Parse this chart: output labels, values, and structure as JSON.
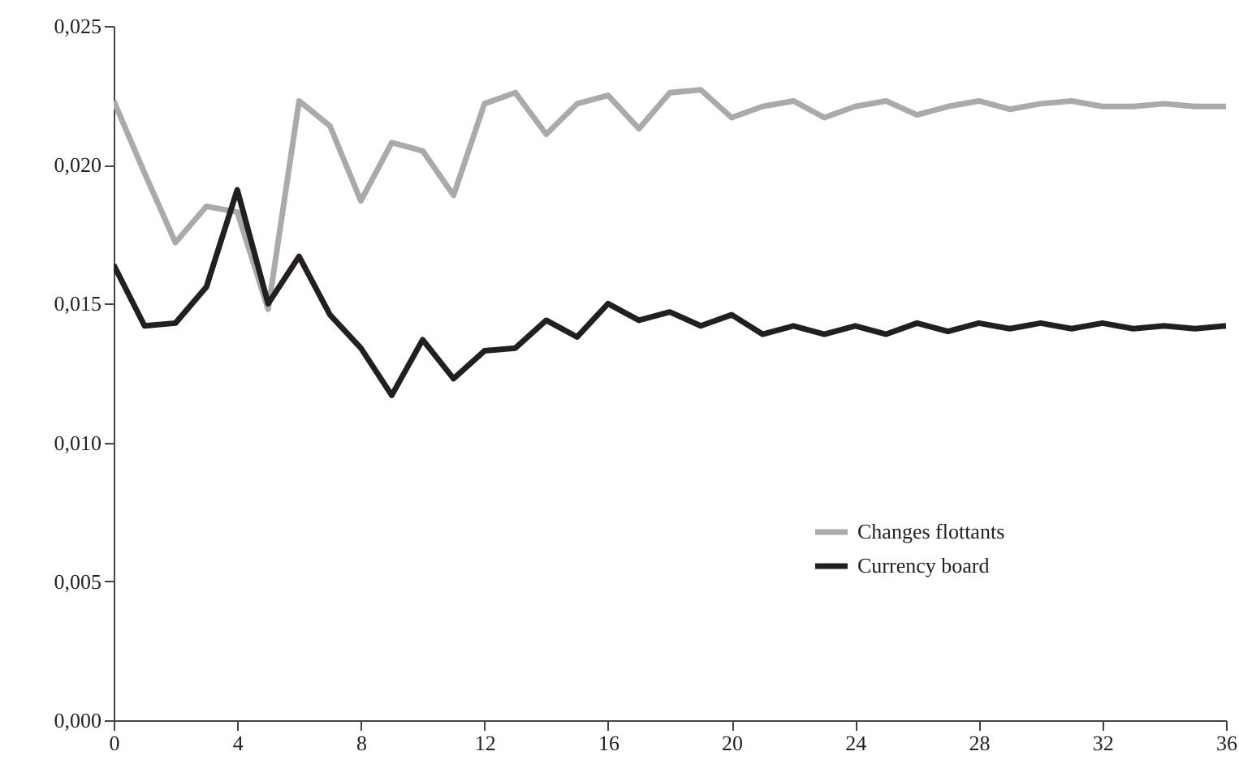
{
  "chart_data": {
    "type": "line",
    "x": [
      0,
      1,
      2,
      3,
      4,
      5,
      6,
      7,
      8,
      9,
      10,
      11,
      12,
      13,
      14,
      15,
      16,
      17,
      18,
      19,
      20,
      21,
      22,
      23,
      24,
      25,
      26,
      27,
      28,
      29,
      30,
      31,
      32,
      33,
      34,
      35,
      36
    ],
    "series": [
      {
        "name": "Changes flottants",
        "color": "#aaaaaa",
        "values": [
          0.0223,
          0.0197,
          0.0172,
          0.0185,
          0.0183,
          0.0148,
          0.0223,
          0.0214,
          0.0187,
          0.0208,
          0.0205,
          0.0189,
          0.0222,
          0.0226,
          0.0211,
          0.0222,
          0.0225,
          0.0213,
          0.0226,
          0.0227,
          0.0217,
          0.0221,
          0.0223,
          0.0217,
          0.0221,
          0.0223,
          0.0218,
          0.0221,
          0.0223,
          0.022,
          0.0222,
          0.0223,
          0.0221,
          0.0221,
          0.0222,
          0.0221,
          0.0221
        ]
      },
      {
        "name": "Currency board",
        "color": "#231f20",
        "values": [
          0.0164,
          0.0142,
          0.0143,
          0.0156,
          0.0191,
          0.015,
          0.0167,
          0.0146,
          0.0134,
          0.0117,
          0.0137,
          0.0123,
          0.0133,
          0.0134,
          0.0144,
          0.0138,
          0.015,
          0.0144,
          0.0147,
          0.0142,
          0.0146,
          0.0139,
          0.0142,
          0.0139,
          0.0142,
          0.0139,
          0.0143,
          0.014,
          0.0143,
          0.0141,
          0.0143,
          0.0141,
          0.0143,
          0.0141,
          0.0142,
          0.0141,
          0.0142
        ]
      }
    ],
    "xlim": [
      0,
      36
    ],
    "xticks": [
      0,
      4,
      8,
      12,
      16,
      20,
      24,
      28,
      32,
      36
    ],
    "ylim": [
      0,
      0.025
    ],
    "yticks": [
      {
        "value": 0,
        "label": "0,000"
      },
      {
        "value": 0.005,
        "label": "0,005"
      },
      {
        "value": 0.01,
        "label": "0,010"
      },
      {
        "value": 0.015,
        "label": "0,015"
      },
      {
        "value": 0.02,
        "label": "0,020"
      },
      {
        "value": 0.025,
        "label": "0,025"
      }
    ],
    "grid": false,
    "legend": "bottom right",
    "line_style": "solid",
    "marker": "none"
  }
}
